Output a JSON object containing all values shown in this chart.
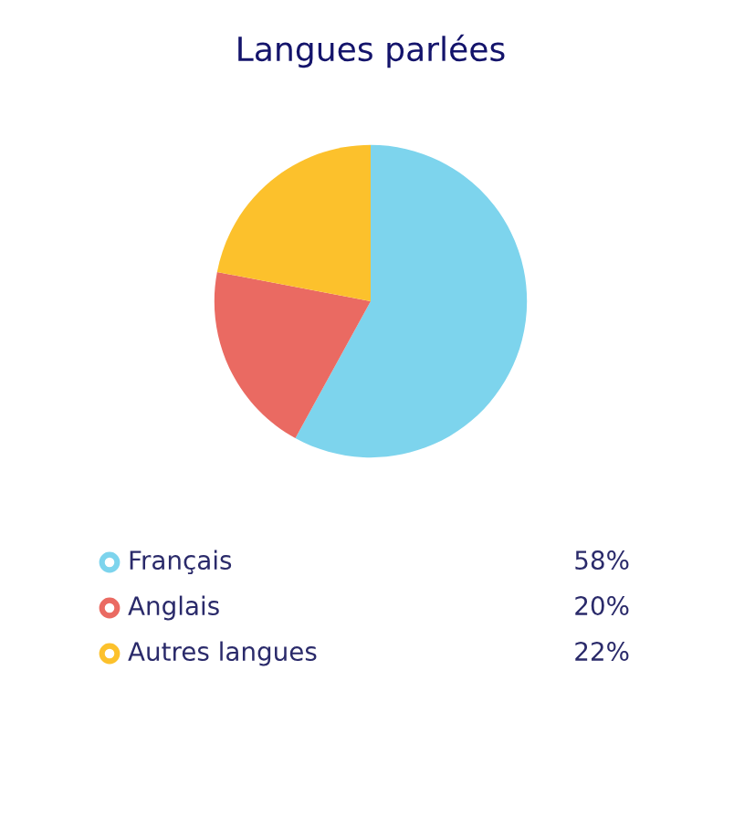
{
  "chart_data": {
    "type": "pie",
    "title": "Langues parlées",
    "categories": [
      "Français",
      "Anglais",
      "Autres langues"
    ],
    "values": [
      58,
      20,
      22
    ],
    "colors": [
      "#7dd4ed",
      "#ea6a62",
      "#fcc12c"
    ],
    "value_labels": [
      "58%",
      "20%",
      "22%"
    ],
    "legend": "bottom"
  }
}
